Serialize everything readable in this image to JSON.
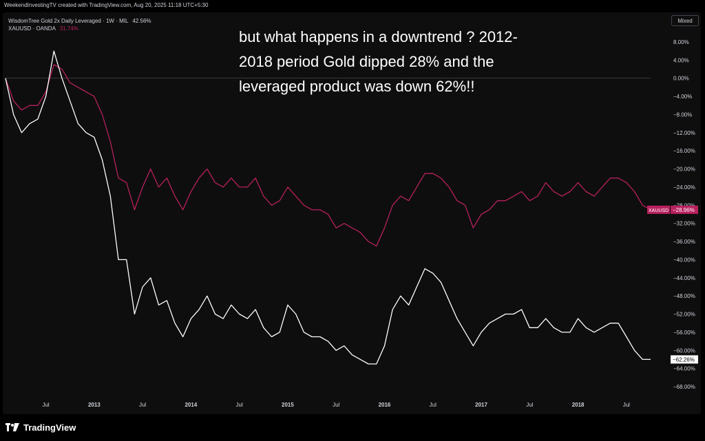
{
  "header": {
    "credit": "WeekendInvestingTV created with TradingView.com, Aug 20, 2025 11:18 UTC+5:30"
  },
  "legend": {
    "series1_label": "WisdomTree Gold 2x Daily Leveraged · 1W · MIL",
    "series1_value": "42.56%",
    "series2_label": "XAUUSD · OANDA",
    "series2_value": "31.74%"
  },
  "toolbar": {
    "mixed_label": "Mixed"
  },
  "annotation": {
    "line1": "but what happens in a downtrend ? 2012-",
    "line2": "2018 period Gold dipped 28% and the",
    "line3": "leveraged product was down 62%!!"
  },
  "footer": {
    "brand": "TradingView"
  },
  "colors": {
    "leveraged": "#ffffff",
    "gold": "#b8215e",
    "axis_text": "#d1d4dc",
    "background": "#0e0e0e"
  },
  "chart_data": {
    "type": "line",
    "title": "",
    "xlabel": "",
    "ylabel": "",
    "y_unit": "%",
    "ylim": [
      -70,
      10
    ],
    "y_ticks": [
      "8.00%",
      "4.00%",
      "0.00%",
      "−4.00%",
      "−8.00%",
      "−12.00%",
      "−16.00%",
      "−20.00%",
      "−24.00%",
      "−28.00%",
      "−32.00%",
      "−36.00%",
      "−40.00%",
      "−44.00%",
      "−48.00%",
      "−52.00%",
      "−56.00%",
      "−60.00%",
      "−64.00%",
      "−68.00%"
    ],
    "x_ticks": [
      "Jul",
      "2013",
      "Jul",
      "2014",
      "Jul",
      "2015",
      "Jul",
      "2016",
      "Jul",
      "2017",
      "Jul",
      "2018",
      "Jul"
    ],
    "x_range": [
      "2012-02",
      "2018-10"
    ],
    "grid": false,
    "last_value_labels": {
      "gold": "−28.96%",
      "gold_symbol": "XAUUSD",
      "leveraged": "−62.26%"
    },
    "series": [
      {
        "name": "XAUUSD",
        "color": "#b8215e",
        "x": [
          "2012-02",
          "2012-03",
          "2012-04",
          "2012-05",
          "2012-06",
          "2012-07",
          "2012-08",
          "2012-09",
          "2012-10",
          "2012-11",
          "2012-12",
          "2013-01",
          "2013-02",
          "2013-03",
          "2013-04",
          "2013-05",
          "2013-06",
          "2013-07",
          "2013-08",
          "2013-09",
          "2013-10",
          "2013-11",
          "2013-12",
          "2014-01",
          "2014-02",
          "2014-03",
          "2014-04",
          "2014-05",
          "2014-06",
          "2014-07",
          "2014-08",
          "2014-09",
          "2014-10",
          "2014-11",
          "2014-12",
          "2015-01",
          "2015-02",
          "2015-03",
          "2015-04",
          "2015-05",
          "2015-06",
          "2015-07",
          "2015-08",
          "2015-09",
          "2015-10",
          "2015-11",
          "2015-12",
          "2016-01",
          "2016-02",
          "2016-03",
          "2016-04",
          "2016-05",
          "2016-06",
          "2016-07",
          "2016-08",
          "2016-09",
          "2016-10",
          "2016-11",
          "2016-12",
          "2017-01",
          "2017-02",
          "2017-03",
          "2017-04",
          "2017-05",
          "2017-06",
          "2017-07",
          "2017-08",
          "2017-09",
          "2017-10",
          "2017-11",
          "2017-12",
          "2018-01",
          "2018-02",
          "2018-03",
          "2018-04",
          "2018-05",
          "2018-06",
          "2018-07",
          "2018-08",
          "2018-09",
          "2018-10"
        ],
        "values": [
          0,
          -5,
          -7,
          -6,
          -6,
          -3,
          3,
          2,
          -1,
          -2,
          -3,
          -4,
          -8,
          -14,
          -22,
          -23,
          -29,
          -24,
          -20,
          -24,
          -22,
          -26,
          -29,
          -25,
          -22,
          -20,
          -23,
          -24,
          -22,
          -24,
          -24,
          -22,
          -26,
          -28,
          -27,
          -24,
          -26,
          -28,
          -29,
          -29,
          -30,
          -33,
          -32,
          -33,
          -34,
          -36,
          -37,
          -33,
          -28,
          -26,
          -27,
          -24,
          -21,
          -21,
          -22,
          -24,
          -27,
          -28,
          -33,
          -30,
          -29,
          -27,
          -27,
          -26,
          -25,
          -27,
          -26,
          -23,
          -25,
          -26,
          -25,
          -23,
          -25,
          -26,
          -24,
          -22,
          -22,
          -23,
          -25,
          -28,
          -29
        ]
      },
      {
        "name": "WisdomTree Gold 2x Daily Leveraged",
        "color": "#ffffff",
        "x": [
          "2012-02",
          "2012-03",
          "2012-04",
          "2012-05",
          "2012-06",
          "2012-07",
          "2012-08",
          "2012-09",
          "2012-10",
          "2012-11",
          "2012-12",
          "2013-01",
          "2013-02",
          "2013-03",
          "2013-04",
          "2013-05",
          "2013-06",
          "2013-07",
          "2013-08",
          "2013-09",
          "2013-10",
          "2013-11",
          "2013-12",
          "2014-01",
          "2014-02",
          "2014-03",
          "2014-04",
          "2014-05",
          "2014-06",
          "2014-07",
          "2014-08",
          "2014-09",
          "2014-10",
          "2014-11",
          "2014-12",
          "2015-01",
          "2015-02",
          "2015-03",
          "2015-04",
          "2015-05",
          "2015-06",
          "2015-07",
          "2015-08",
          "2015-09",
          "2015-10",
          "2015-11",
          "2015-12",
          "2016-01",
          "2016-02",
          "2016-03",
          "2016-04",
          "2016-05",
          "2016-06",
          "2016-07",
          "2016-08",
          "2016-09",
          "2016-10",
          "2016-11",
          "2016-12",
          "2017-01",
          "2017-02",
          "2017-03",
          "2017-04",
          "2017-05",
          "2017-06",
          "2017-07",
          "2017-08",
          "2017-09",
          "2017-10",
          "2017-11",
          "2017-12",
          "2018-01",
          "2018-02",
          "2018-03",
          "2018-04",
          "2018-05",
          "2018-06",
          "2018-07",
          "2018-08",
          "2018-09",
          "2018-10"
        ],
        "values": [
          0,
          -8,
          -12,
          -10,
          -9,
          -4,
          6,
          0,
          -5,
          -10,
          -12,
          -13,
          -18,
          -26,
          -40,
          -40,
          -52,
          -46,
          -44,
          -50,
          -49,
          -54,
          -57,
          -53,
          -51,
          -48,
          -52,
          -53,
          -50,
          -52,
          -53,
          -51,
          -55,
          -57,
          -56,
          -50,
          -52,
          -56,
          -57,
          -57,
          -58,
          -60,
          -59,
          -61,
          -62,
          -63,
          -63,
          -59,
          -51,
          -48,
          -50,
          -46,
          -42,
          -43,
          -45,
          -49,
          -53,
          -56,
          -59,
          -56,
          -54,
          -53,
          -52,
          -52,
          -51,
          -55,
          -55,
          -53,
          -55,
          -56,
          -56,
          -53,
          -55,
          -56,
          -55,
          -54,
          -54,
          -57,
          -60,
          -62,
          -62
        ]
      }
    ]
  }
}
